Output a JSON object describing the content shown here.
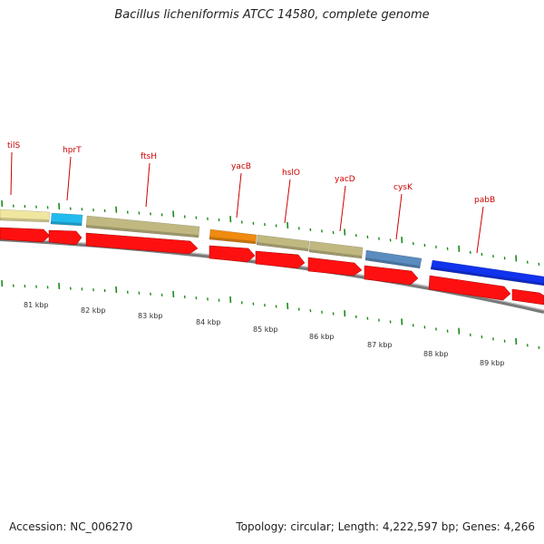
{
  "title": "Bacillus licheniformis ATCC 14580, complete genome",
  "footer": {
    "accession": "Accession: NC_006270",
    "summary": "Topology: circular; Length: 4,222,597 bp; Genes: 4,266"
  },
  "colors": {
    "backbone": "#808080",
    "cds_arrow": "#ff0000",
    "tick": "#1a8a1a",
    "label": "#cc0000"
  },
  "gene_labels": [
    {
      "id": "tilS",
      "text": "tilS"
    },
    {
      "id": "hprT",
      "text": "hprT"
    },
    {
      "id": "ftsH",
      "text": "ftsH"
    },
    {
      "id": "yacB",
      "text": "yacB"
    },
    {
      "id": "hslO",
      "text": "hslO"
    },
    {
      "id": "yacD",
      "text": "yacD"
    },
    {
      "id": "cysK",
      "text": "cysK"
    },
    {
      "id": "pabB",
      "text": "pabB"
    }
  ],
  "feature_bars": [
    {
      "name": "tilS-bar",
      "color": "#f0e6a0"
    },
    {
      "name": "hprT-bar",
      "color": "#22bbee"
    },
    {
      "name": "ftsH-bar",
      "color": "#c0b880"
    },
    {
      "name": "yacB-bar",
      "color": "#f08a10"
    },
    {
      "name": "hslO-bar",
      "color": "#c0b880"
    },
    {
      "name": "yacD-bar",
      "color": "#c0b880"
    },
    {
      "name": "cysK-bar",
      "color": "#5a8cc0"
    },
    {
      "name": "pabB-bar",
      "color": "#1133ee"
    }
  ],
  "kbp_labels": [
    "81 kbp",
    "82 kbp",
    "83 kbp",
    "84 kbp",
    "85 kbp",
    "86 kbp",
    "87 kbp",
    "88 kbp",
    "89 kbp"
  ]
}
